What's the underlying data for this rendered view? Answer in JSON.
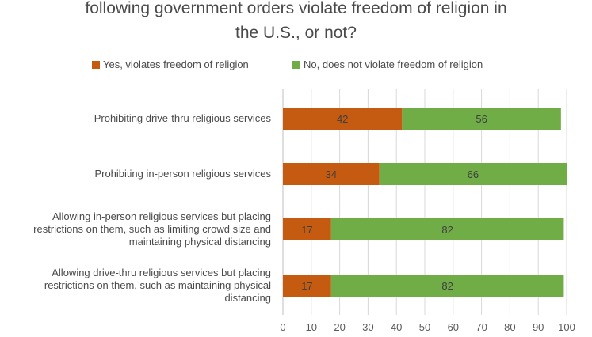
{
  "colors": {
    "yes": "#C55A11",
    "no": "#70AD47"
  },
  "chart_data": {
    "type": "bar",
    "orientation": "horizontal",
    "stacked": true,
    "title": "following government orders violate freedom of religion in the U.S., or not?",
    "title_lines": [
      "following government orders violate freedom of religion in",
      "the U.S., or not?"
    ],
    "categories": [
      "Prohibiting drive-thru religious services",
      "Prohibiting in-person religious services",
      "Allowing in-person religious services but placing restrictions on them, such as limiting crowd size and maintaining physical distancing",
      "Allowing drive-thru religious services but placing restrictions on them, such as maintaining physical distancing"
    ],
    "category_lines": [
      [
        "Prohibiting drive-thru religious services"
      ],
      [
        "Prohibiting in-person religious services"
      ],
      [
        "Allowing in-person religious services but placing",
        "restrictions on them, such as limiting crowd size and",
        "maintaining physical distancing"
      ],
      [
        "Allowing drive-thru religious services but placing",
        "restrictions on them, such as maintaining physical",
        "distancing"
      ]
    ],
    "series": [
      {
        "name": "Yes, violates freedom of religion",
        "values": [
          42,
          34,
          17,
          17
        ]
      },
      {
        "name": "No, does not violate freedom of religion",
        "values": [
          56,
          66,
          82,
          82
        ]
      }
    ],
    "xlim": [
      0,
      100
    ],
    "xticks": [
      0,
      10,
      20,
      30,
      40,
      50,
      60,
      70,
      80,
      90,
      100
    ],
    "grid": "vertical",
    "legend": "top"
  }
}
